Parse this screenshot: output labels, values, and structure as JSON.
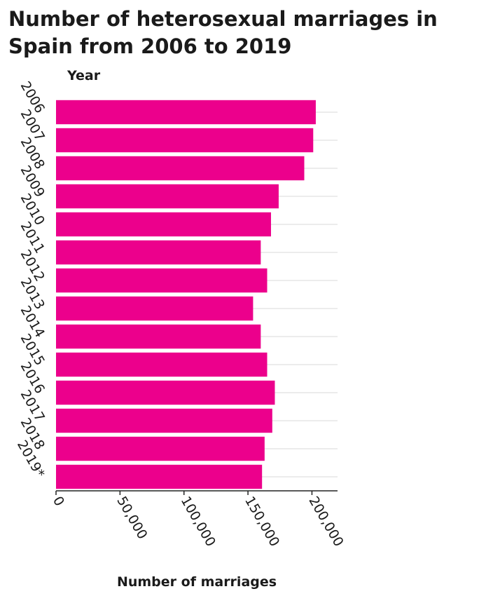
{
  "chart_data": {
    "type": "bar",
    "orientation": "horizontal",
    "title": "Number of heterosexual marriages in Spain from 2006 to 2019",
    "xlabel": "Number of marriages",
    "ylabel": "Year",
    "categories": [
      "2006",
      "2007",
      "2008",
      "2009",
      "2010",
      "2011",
      "2012",
      "2013",
      "2014",
      "2015",
      "2016",
      "2017",
      "2018",
      "2019*"
    ],
    "values": [
      203000,
      201000,
      194000,
      174000,
      168000,
      160000,
      165000,
      154000,
      160000,
      165000,
      171000,
      169000,
      163000,
      161000
    ],
    "xlim": [
      0,
      220000
    ],
    "xticks": [
      0,
      50000,
      100000,
      150000,
      200000
    ],
    "xtick_labels": [
      "0",
      "50,000",
      "100,000",
      "150,000",
      "200,000"
    ],
    "grid": "horizontal lines at categories",
    "bar_color": "#ec008c"
  }
}
